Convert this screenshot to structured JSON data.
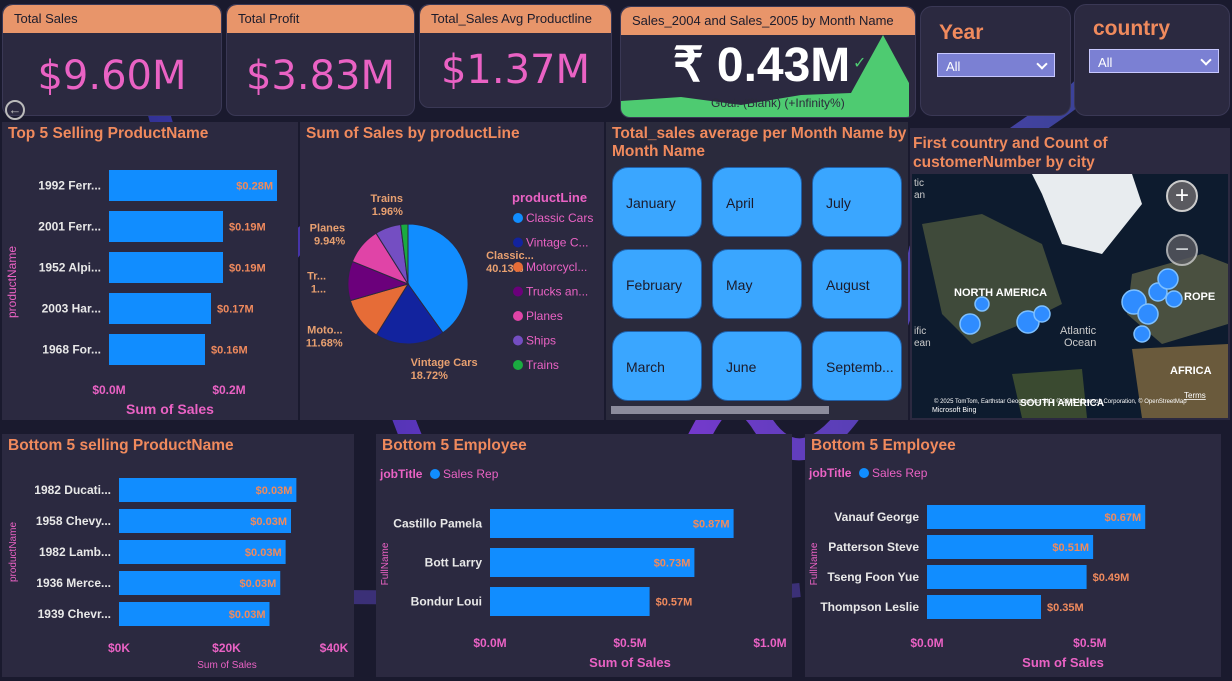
{
  "kpis": [
    {
      "title": "Total Sales",
      "value": "$9.60M"
    },
    {
      "title": "Total Profit",
      "value": "$3.83M"
    },
    {
      "title": "Total_Sales Avg Productline",
      "value": "$1.37M"
    }
  ],
  "yoy": {
    "title": "Sales_2004 and Sales_2005 by Month Name",
    "value": "₹ 0.43M",
    "check": "✓",
    "note": "Goal: (Blank) (+Infinity%)",
    "color": "#4ecb71"
  },
  "slicers": {
    "year": {
      "title": "Year",
      "value": "All"
    },
    "country": {
      "title": "country",
      "value": "All"
    }
  },
  "top5": {
    "title": "Top 5 Selling ProductName",
    "ylabel": "productName",
    "xlabel": "Sum of Sales",
    "ticks": [
      "$0.0M",
      "$0.2M"
    ],
    "chart_data": {
      "type": "bar",
      "categories": [
        "1992 Ferr...",
        "2001 Ferr...",
        "1952 Alpi...",
        "2003 Har...",
        "1968 For..."
      ],
      "values": [
        0.28,
        0.19,
        0.19,
        0.17,
        0.16
      ],
      "labels": [
        "$0.28M",
        "$0.19M",
        "$0.19M",
        "$0.17M",
        "$0.16M"
      ],
      "xlim": [
        0,
        0.3
      ]
    }
  },
  "pie": {
    "title": "Sum of Sales by productLine",
    "legend_title": "productLine",
    "chart_data": {
      "type": "pie",
      "slices": [
        {
          "name": "Classic Cars",
          "legend": "Classic Cars",
          "value": 40.13,
          "label1": "Classic...",
          "label2": "40.13%",
          "color": "#118dff"
        },
        {
          "name": "Vintage Cars",
          "legend": "Vintage C...",
          "value": 18.72,
          "label1": "Vintage Cars",
          "label2": "18.72%",
          "color": "#12239e"
        },
        {
          "name": "Motorcycles",
          "legend": "Motorcycl...",
          "value": 11.68,
          "label1": "Moto...",
          "label2": "11.68%",
          "color": "#e66c37"
        },
        {
          "name": "Trucks and Buses",
          "legend": "Trucks an...",
          "value": 10.6,
          "label1": "Tr...",
          "label2": "1...",
          "color": "#6b007b"
        },
        {
          "name": "Planes",
          "legend": "Planes",
          "value": 9.94,
          "label1": "Planes",
          "label2": "9.94%",
          "color": "#e044a7"
        },
        {
          "name": "Ships",
          "legend": "Ships",
          "value": 6.97,
          "label1": "",
          "label2": "",
          "color": "#744ec2"
        },
        {
          "name": "Trains",
          "legend": "Trains",
          "value": 1.96,
          "label1": "Trains",
          "label2": "1.96%",
          "color": "#1aab40"
        }
      ]
    }
  },
  "months": {
    "title": "Total_sales average per Month Name by Month Name",
    "items": [
      "January",
      "April",
      "July",
      "February",
      "May",
      "August",
      "March",
      "June",
      "Septemb..."
    ]
  },
  "map": {
    "title": "First country and Count of customerNumber by city",
    "labels": {
      "na": "NORTH AMERICA",
      "eu": "ROPE",
      "atl": "Atlantic",
      "ocean": "Ocean",
      "af": "AFRICA",
      "sa": "SOUTH AMERICA",
      "tic": "tic",
      "an": "an",
      "ific": "ific",
      "ean": "ean"
    },
    "attribution": "© 2025 TomTom, Earthstar Geographics SIO, © 2025 Microsoft Corporation, © OpenStreetMap",
    "terms": "Terms",
    "brand": "Microsoft Bing",
    "zoom_in": "+",
    "zoom_out": "−"
  },
  "bottom5": {
    "title": "Bottom 5 selling ProductName",
    "ylabel": "productName",
    "xlabel": "Sum of Sales",
    "ticks": [
      "$0K",
      "$20K",
      "$40K"
    ],
    "chart_data": {
      "type": "bar",
      "categories": [
        "1982 Ducati...",
        "1958 Chevy...",
        "1982 Lamb...",
        "1936 Merce...",
        "1939 Chevr..."
      ],
      "values": [
        33,
        32,
        31,
        30,
        28
      ],
      "labels": [
        "$0.03M",
        "$0.03M",
        "$0.03M",
        "$0.03M",
        "$0.03M"
      ],
      "xlim": [
        0,
        40
      ]
    }
  },
  "emp1": {
    "title": "Bottom 5 Employee",
    "legend_title": "jobTitle",
    "legend_item": "Sales Rep",
    "ylabel": "FullName",
    "xlabel": "Sum of Sales",
    "ticks": [
      "$0.0M",
      "$0.5M",
      "$1.0M"
    ],
    "chart_data": {
      "type": "bar",
      "categories": [
        "Castillo Pamela",
        "Bott Larry",
        "Bondur Loui"
      ],
      "values": [
        0.87,
        0.73,
        0.57
      ],
      "labels": [
        "$0.87M",
        "$0.73M",
        "$0.57M"
      ],
      "xlim": [
        0,
        1.0
      ]
    }
  },
  "emp2": {
    "title": "Bottom 5 Employee",
    "legend_title": "jobTitle",
    "legend_item": "Sales Rep",
    "ylabel": "FullName",
    "xlabel": "Sum of Sales",
    "ticks": [
      "$0.0M",
      "$0.5M"
    ],
    "chart_data": {
      "type": "bar",
      "categories": [
        "Vanauf George",
        "Patterson Steve",
        "Tseng Foon Yue",
        "Thompson Leslie"
      ],
      "values": [
        0.67,
        0.51,
        0.49,
        0.35
      ],
      "labels": [
        "$0.67M",
        "$0.51M",
        "$0.49M",
        "$0.35M"
      ],
      "xlim": [
        0,
        0.7
      ]
    }
  }
}
